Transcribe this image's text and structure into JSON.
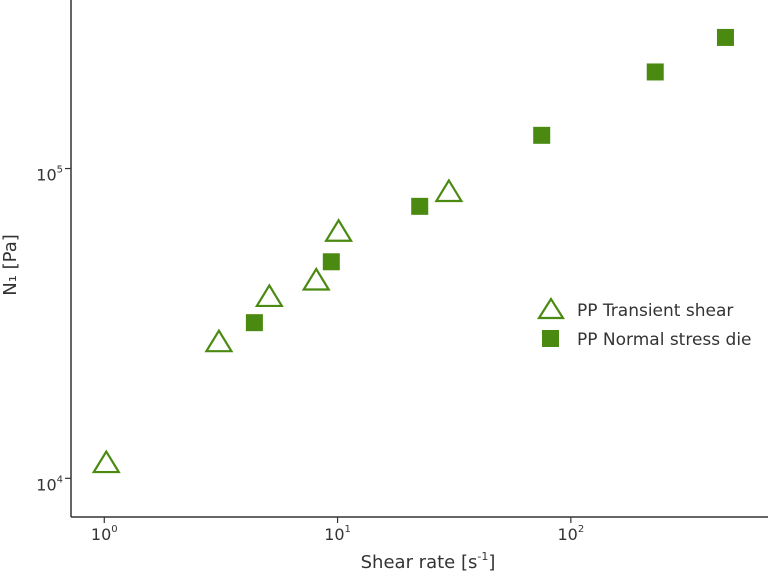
{
  "chart_data": {
    "type": "scatter",
    "x_scale": "log",
    "y_scale": "log",
    "xlim": [
      0.72,
      700
    ],
    "ylim": [
      7500,
      350000
    ],
    "grid": false,
    "legend_position": "right",
    "xlabel_main": "Shear rate [s",
    "xlabel_sup": "-1",
    "xlabel_end": "]",
    "ylabel": "N₁ [Pa]",
    "x_ticks": [
      {
        "value": 1,
        "base": "10",
        "exp": "0"
      },
      {
        "value": 10,
        "base": "10",
        "exp": "1"
      },
      {
        "value": 100,
        "base": "10",
        "exp": "2"
      }
    ],
    "y_ticks": [
      {
        "value": 10000,
        "base": "10",
        "exp": "4"
      },
      {
        "value": 100000,
        "base": "10",
        "exp": "5"
      }
    ],
    "series": [
      {
        "name": "PP Transient shear",
        "marker": "open-triangle",
        "color": "#4a8a10",
        "points": [
          {
            "x": 1.02,
            "y": 11200
          },
          {
            "x": 3.1,
            "y": 27500
          },
          {
            "x": 5.1,
            "y": 38500
          },
          {
            "x": 8.1,
            "y": 43500
          },
          {
            "x": 10.1,
            "y": 62500
          },
          {
            "x": 30,
            "y": 84000
          }
        ]
      },
      {
        "name": "PP Normal stress die",
        "marker": "filled-square",
        "color": "#4a8a10",
        "points": [
          {
            "x": 4.4,
            "y": 31800
          },
          {
            "x": 9.4,
            "y": 50000
          },
          {
            "x": 22.5,
            "y": 75500
          },
          {
            "x": 75,
            "y": 128000
          },
          {
            "x": 230,
            "y": 205000
          },
          {
            "x": 460,
            "y": 265000
          }
        ]
      }
    ]
  }
}
